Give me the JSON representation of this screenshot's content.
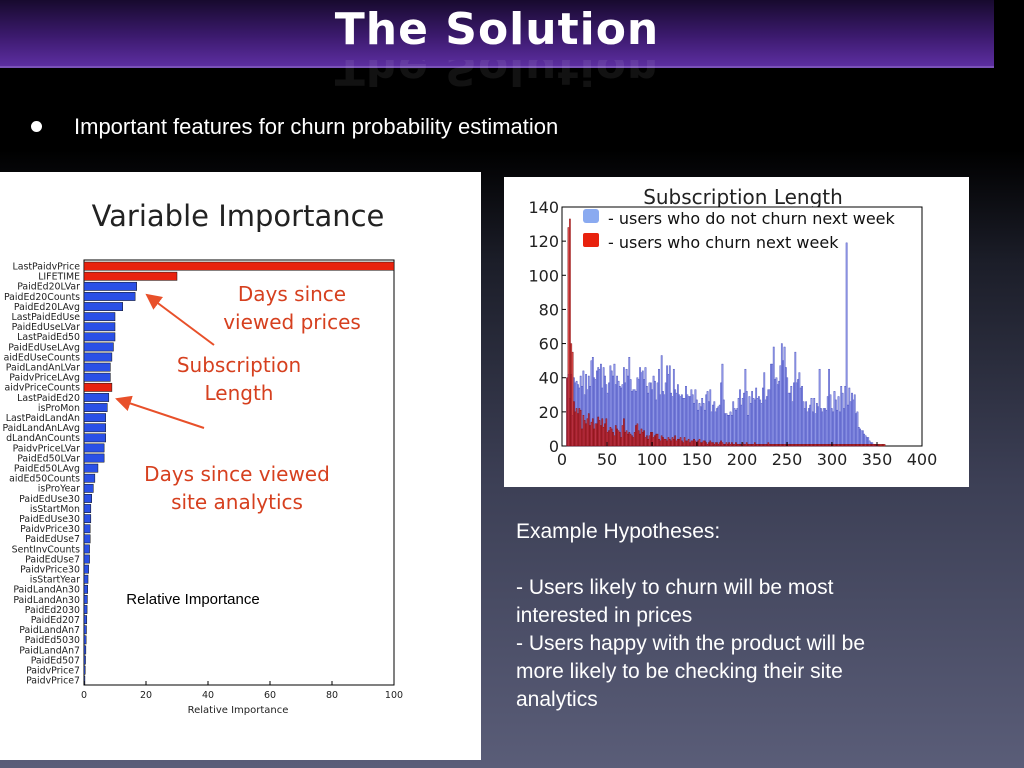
{
  "slide": {
    "title": "The Solution",
    "bullet": "Important features for churn probability estimation",
    "hypotheses_heading": "Example Hypotheses:",
    "hypothesis_1_line1": "- Users likely to churn will be most",
    "hypothesis_1_line2": "interested in prices",
    "hypothesis_2_line1": "- Users happy with the product will be",
    "hypothesis_2_line2": "more likely to be checking their site",
    "hypothesis_2_line3": "analytics"
  },
  "annotations": {
    "days_viewed_prices_1": "Days since",
    "days_viewed_prices_2": "viewed prices",
    "subscription_length_1": "Subscription",
    "subscription_length_2": "Length",
    "days_viewed_analytics_1": "Days since viewed",
    "days_viewed_analytics_2": "site analytics",
    "relative_importance_note": "Relative Importance"
  },
  "colors": {
    "bar_blue": "#2a50e6",
    "bar_red": "#e8220e",
    "hist_blue": "#8c93e8",
    "hist_red": "#d01414",
    "annotation": "#d6401f"
  },
  "chart_data": [
    {
      "type": "bar",
      "orientation": "horizontal",
      "title": "Variable Importance",
      "xlabel": "Relative Importance",
      "xlim": [
        0,
        100
      ],
      "xticks": [
        0,
        20,
        40,
        60,
        80,
        100
      ],
      "categories": [
        "LastPaidvPrice",
        "LIFETIME",
        "PaidEd20LVar",
        "PaidEd20Counts",
        "PaidEd20LAvg",
        "LastPaidEdUse",
        "PaidEdUseLVar",
        "LastPaidEd50",
        "PaidEdUseLAvg",
        "aidEdUseCounts",
        "PaidLandAnLVar",
        "PaidvPriceLAvg",
        "aidvPriceCounts",
        "LastPaidEd20",
        "isProMon",
        "LastPaidLandAn",
        "PaidLandAnLAvg",
        "dLandAnCounts",
        "PaidvPriceLVar",
        "PaidEd50LVar",
        "PaidEd50LAvg",
        "aidEd50Counts",
        "isProYear",
        "PaidEdUse30",
        "isStartMon",
        "PaidEdUse30",
        "PaidvPrice30",
        "PaidEdUse7",
        "SentInvCounts",
        "PaidEdUse7",
        "PaidvPrice30",
        "isStartYear",
        "PaidLandAn30",
        "PaidLandAn30",
        "PaidEd2030",
        "PaidEd207",
        "PaidLandAn7",
        "PaidEd5030",
        "PaidLandAn7",
        "PaidEd507",
        "PaidvPrice7",
        "PaidvPrice7"
      ],
      "values": [
        100,
        30,
        17,
        16.5,
        12.5,
        10,
        10,
        10,
        9.5,
        9,
        8.5,
        8.5,
        9,
        8,
        7.5,
        7,
        7,
        7,
        6.5,
        6.5,
        4.5,
        3.5,
        3,
        2.5,
        2.2,
        2.2,
        2,
        2,
        1.8,
        1.8,
        1.5,
        1.3,
        1.2,
        1.1,
        1,
        0.9,
        0.8,
        0.7,
        0.6,
        0.5,
        0.4,
        0.3
      ],
      "highlighted": [
        "LastPaidvPrice",
        "LIFETIME",
        "aidvPriceCounts"
      ]
    },
    {
      "type": "bar",
      "subtype": "histogram",
      "title": "Subscription Length",
      "xlim": [
        0,
        400
      ],
      "ylim": [
        0,
        140
      ],
      "xticks": [
        0,
        50,
        100,
        150,
        200,
        250,
        300,
        350,
        400
      ],
      "yticks": [
        0,
        20,
        40,
        60,
        80,
        100,
        120,
        140
      ],
      "legend_position": "top-right",
      "series": [
        {
          "name": "- users who do not churn next week",
          "values": [
            40,
            42,
            28,
            42,
            18,
            40,
            37,
            38,
            36,
            34,
            41,
            35,
            44,
            30,
            42,
            33,
            41,
            35,
            50,
            52,
            40,
            39,
            44,
            46,
            45,
            48,
            34,
            46,
            41,
            36,
            31,
            37,
            47,
            44,
            41,
            48,
            36,
            41,
            38,
            35,
            34,
            36,
            46,
            37,
            45,
            41,
            52,
            39,
            32,
            33,
            33,
            32,
            40,
            39,
            46,
            43,
            44,
            39,
            46,
            35,
            31,
            37,
            37,
            33,
            41,
            38,
            27,
            37,
            45,
            30,
            53,
            32,
            30,
            37,
            47,
            42,
            47,
            31,
            29,
            45,
            33,
            31,
            36,
            30,
            29,
            30,
            28,
            28,
            35,
            30,
            29,
            29,
            33,
            30,
            25,
            33,
            27,
            21,
            25,
            23,
            28,
            25,
            21,
            30,
            32,
            26,
            33,
            20,
            24,
            26,
            20,
            22,
            23,
            24,
            37,
            48,
            27,
            19,
            19,
            18,
            18,
            20,
            18,
            26,
            22,
            21,
            22,
            28,
            33,
            24,
            28,
            31,
            45,
            32,
            18,
            29,
            25,
            32,
            28,
            27,
            34,
            28,
            29,
            27,
            25,
            34,
            43,
            27,
            29,
            33,
            33,
            48,
            48,
            58,
            39,
            40,
            36,
            38,
            47,
            60,
            50,
            58,
            46,
            40,
            31,
            31,
            35,
            26,
            37,
            55,
            37,
            39,
            43,
            34,
            35,
            26,
            22,
            26,
            20,
            22,
            24,
            28,
            20,
            28,
            19,
            25,
            23,
            45,
            22,
            20,
            22,
            22,
            21,
            29,
            45,
            30,
            22,
            20,
            32,
            27,
            21,
            29,
            20,
            35,
            31,
            22,
            35,
            119,
            24,
            34,
            26,
            31,
            27,
            30,
            19,
            20,
            11,
            10,
            9,
            9,
            7,
            6,
            5,
            5,
            3,
            2,
            2,
            1,
            1,
            1,
            1
          ]
        },
        {
          "name": "- users who churn next week",
          "values": [
            40,
            128,
            133,
            60,
            55,
            26,
            20,
            22,
            19,
            22,
            21,
            10,
            18,
            15,
            13,
            16,
            19,
            12,
            14,
            16,
            10,
            13,
            13,
            17,
            15,
            12,
            16,
            11,
            13,
            16,
            8,
            9,
            11,
            10,
            8,
            6,
            12,
            10,
            9,
            8,
            5,
            12,
            16,
            8,
            9,
            7,
            8,
            7,
            6,
            5,
            8,
            12,
            13,
            9,
            7,
            10,
            8,
            9,
            5,
            6,
            4,
            6,
            8,
            8,
            5,
            6,
            7,
            7,
            4,
            3,
            6,
            5,
            4,
            4,
            3,
            5,
            4,
            3,
            5,
            4,
            6,
            3,
            4,
            4,
            5,
            3,
            2,
            5,
            3,
            3,
            4,
            2,
            3,
            3,
            4,
            3,
            2,
            3,
            4,
            2,
            2,
            3,
            3,
            2,
            1,
            2,
            3,
            2,
            2,
            1,
            2,
            2,
            1,
            2,
            3,
            2,
            1,
            1,
            2,
            1,
            2,
            1,
            2,
            1,
            1,
            2,
            1,
            1,
            1,
            1,
            2,
            1,
            1,
            2,
            1,
            1,
            1,
            1,
            1,
            2,
            1,
            1,
            1,
            1,
            1,
            1,
            1,
            1,
            1,
            2,
            1,
            1,
            1,
            1,
            1,
            1,
            1,
            1,
            1,
            1,
            1,
            1,
            1,
            1,
            1,
            1,
            1,
            1,
            1,
            1,
            1,
            1,
            1,
            1,
            1,
            1,
            1,
            1,
            1,
            1,
            1,
            1,
            1,
            1,
            1,
            1,
            1,
            1,
            1,
            1,
            1,
            1,
            1,
            1,
            1,
            1,
            1,
            1,
            1,
            1,
            1,
            1,
            1,
            1,
            1,
            1,
            1,
            1,
            1,
            1,
            1,
            1,
            1,
            1,
            1,
            1,
            1,
            1,
            1,
            1,
            1,
            1,
            1,
            1,
            1,
            1,
            1,
            1,
            1,
            1,
            1,
            1,
            1,
            1,
            1,
            1
          ]
        }
      ]
    }
  ]
}
